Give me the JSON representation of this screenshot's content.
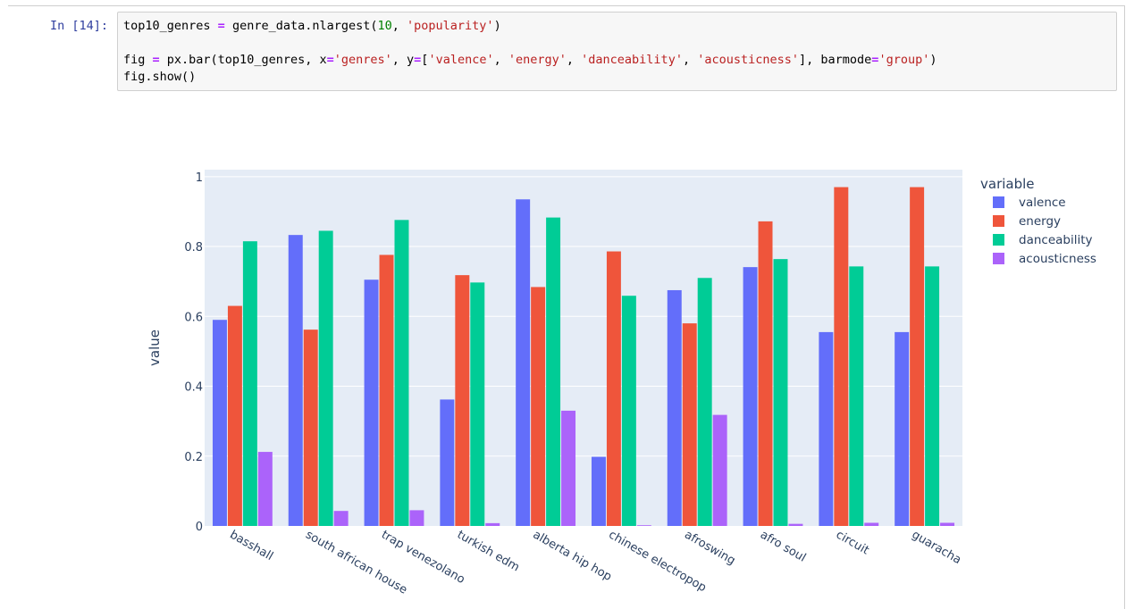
{
  "cell": {
    "prompt": "In [14]:",
    "line1": {
      "p1": "top10_genres ",
      "op1": "=",
      "p2": " genre_data.nlargest(",
      "num": "10",
      "p3": ", ",
      "str": "'popularity'",
      "p4": ")"
    },
    "line2": {
      "p1": "fig ",
      "op1": "=",
      "p2": " px.bar(top10_genres, x",
      "op2": "=",
      "s1": "'genres'",
      "p3": ", y",
      "op3": "=",
      "p4": "[",
      "s2": "'valence'",
      "p5": ", ",
      "s3": "'energy'",
      "p6": ", ",
      "s4": "'danceability'",
      "p7": ", ",
      "s5": "'acousticness'",
      "p8": "], barmode",
      "op4": "=",
      "s6": "'group'",
      "p9": ")"
    },
    "line3": "fig.show()"
  },
  "colors": {
    "plot_bg": "#e5ecf6",
    "grid": "#ffffff",
    "text": "#2a3f5f"
  },
  "chart_data": {
    "type": "bar",
    "barmode": "group",
    "title": "",
    "xlabel": "",
    "ylabel": "value",
    "ylim": [
      0,
      1.02
    ],
    "yticks": [
      0,
      0.2,
      0.4,
      0.6,
      0.8,
      1
    ],
    "ytick_labels": [
      "0",
      "0.2",
      "0.4",
      "0.6",
      "0.8",
      "1"
    ],
    "legend_title": "variable",
    "legend_position": "top-right",
    "grid": true,
    "categories": [
      "basshall",
      "south african house",
      "trap venezolano",
      "turkish edm",
      "alberta hip hop",
      "chinese electropop",
      "afroswing",
      "afro soul",
      "circuit",
      "guaracha"
    ],
    "series": [
      {
        "name": "valence",
        "color": "#636efa",
        "values": [
          0.59,
          0.833,
          0.705,
          0.362,
          0.935,
          0.198,
          0.675,
          0.741,
          0.555,
          0.555
        ]
      },
      {
        "name": "energy",
        "color": "#ef553b",
        "values": [
          0.63,
          0.562,
          0.776,
          0.718,
          0.684,
          0.786,
          0.58,
          0.872,
          0.97,
          0.97
        ]
      },
      {
        "name": "danceability",
        "color": "#00cc96",
        "values": [
          0.815,
          0.845,
          0.876,
          0.697,
          0.883,
          0.659,
          0.71,
          0.764,
          0.743,
          0.743
        ]
      },
      {
        "name": "acousticness",
        "color": "#ab63fa",
        "values": [
          0.212,
          0.043,
          0.045,
          0.008,
          0.33,
          0.002,
          0.318,
          0.006,
          0.009,
          0.009
        ]
      }
    ]
  }
}
